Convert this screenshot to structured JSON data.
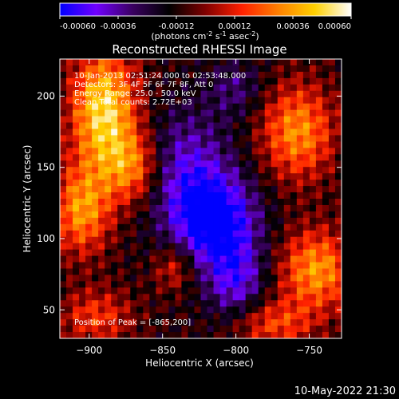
{
  "colorbar": {
    "ticks": [
      "-0.00060",
      "-0.00036",
      "-0.00012",
      "0.00012",
      "0.00036",
      "0.00060"
    ],
    "units_main": "(photons cm",
    "units_exp1": "-2",
    "units_mid": " s",
    "units_exp2": "-1",
    "units_mid2": " asec",
    "units_exp3": "-2",
    "units_end": ")",
    "range": [
      -0.0006,
      0.0006
    ]
  },
  "annotations": {
    "time_range": "10-Jan-2013 02:51:24.000 to 02:53:48.000",
    "detectors": "Detectors: 3F 4F 5F 6F 7F 8F, Att 0",
    "energy": "Energy Range: 25.0 - 50.0 keV",
    "clean": "Clean      Total counts: 2.72E+03",
    "peak": "Position of Peak = [-865,200]"
  },
  "footer": {
    "timestamp": "10-May-2022 21:30"
  },
  "chart_data": {
    "type": "heatmap",
    "title": "Reconstructed RHESSI Image",
    "xlabel": "Heliocentric X (arcsec)",
    "ylabel": "Heliocentric Y (arcsec)",
    "xlim": [
      -920,
      -728
    ],
    "ylim": [
      30,
      226
    ],
    "xticks": [
      -900,
      -850,
      -800,
      -750
    ],
    "xtick_labels": [
      "−900",
      "−850",
      "−800",
      "−750"
    ],
    "yticks": [
      50,
      100,
      150,
      200
    ],
    "ytick_labels": [
      "50",
      "100",
      "150",
      "200"
    ],
    "colormap": [
      "#0000ff",
      "#7000ff",
      "#3a0060",
      "#000000",
      "#800000",
      "#ff2000",
      "#ff8000",
      "#ffd000",
      "#ffffff"
    ],
    "peak": {
      "x": -865,
      "y": 200
    },
    "value_range": [
      -0.0006,
      0.0006
    ],
    "sources": [
      {
        "x": -890,
        "y": 190,
        "sx": 16,
        "sy": 30,
        "amp": 0.00062
      },
      {
        "x": -905,
        "y": 120,
        "sx": 14,
        "sy": 22,
        "amp": 0.00045
      },
      {
        "x": -870,
        "y": 150,
        "sx": 14,
        "sy": 18,
        "amp": 0.0004
      },
      {
        "x": -758,
        "y": 175,
        "sx": 18,
        "sy": 24,
        "amp": 0.00044
      },
      {
        "x": -745,
        "y": 78,
        "sx": 18,
        "sy": 20,
        "amp": 0.00046
      },
      {
        "x": -775,
        "y": 40,
        "sx": 20,
        "sy": 12,
        "amp": 0.0003
      },
      {
        "x": -895,
        "y": 45,
        "sx": 18,
        "sy": 14,
        "amp": 0.00028
      },
      {
        "x": -842,
        "y": 80,
        "sx": 10,
        "sy": 12,
        "amp": 0.00025
      },
      {
        "x": -815,
        "y": 112,
        "sx": 20,
        "sy": 22,
        "amp": -0.00055
      },
      {
        "x": -835,
        "y": 150,
        "sx": 22,
        "sy": 28,
        "amp": -0.0003
      },
      {
        "x": -800,
        "y": 70,
        "sx": 14,
        "sy": 20,
        "amp": -0.00032
      },
      {
        "x": -800,
        "y": 205,
        "sx": 14,
        "sy": 14,
        "amp": -0.00018
      }
    ]
  }
}
